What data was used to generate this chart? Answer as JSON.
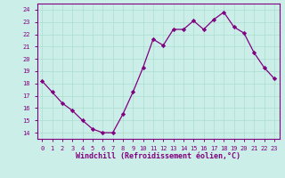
{
  "x": [
    0,
    1,
    2,
    3,
    4,
    5,
    6,
    7,
    8,
    9,
    10,
    11,
    12,
    13,
    14,
    15,
    16,
    17,
    18,
    19,
    20,
    21,
    22,
    23
  ],
  "y": [
    18.2,
    17.3,
    16.4,
    15.8,
    15.0,
    14.3,
    14.0,
    14.0,
    15.5,
    17.3,
    19.3,
    21.6,
    21.1,
    22.4,
    22.4,
    23.1,
    22.4,
    23.2,
    23.8,
    22.6,
    22.1,
    20.5,
    19.3,
    18.4
  ],
  "xlim": [
    -0.5,
    23.5
  ],
  "ylim": [
    13.5,
    24.5
  ],
  "yticks": [
    14,
    15,
    16,
    17,
    18,
    19,
    20,
    21,
    22,
    23,
    24
  ],
  "xticks": [
    0,
    1,
    2,
    3,
    4,
    5,
    6,
    7,
    8,
    9,
    10,
    11,
    12,
    13,
    14,
    15,
    16,
    17,
    18,
    19,
    20,
    21,
    22,
    23
  ],
  "xlabel": "Windchill (Refroidissement éolien,°C)",
  "line_color": "#800080",
  "marker": "D",
  "marker_size": 2.2,
  "bg_color": "#cceee8",
  "grid_color": "#aaddcc",
  "spine_color": "#800080"
}
